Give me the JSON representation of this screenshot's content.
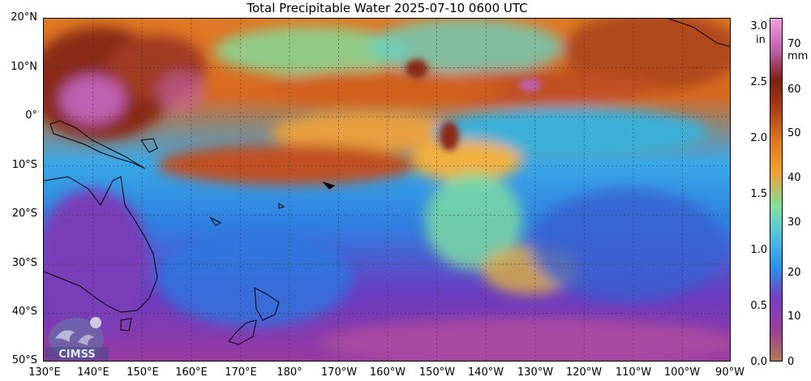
{
  "title": "Total Precipitable Water  2025-07-10 0600 UTC",
  "lat_labels": [
    "20°N",
    "10°N",
    "0°",
    "10°S",
    "20°S",
    "30°S",
    "40°S",
    "50°S"
  ],
  "lon_labels": [
    "130°E",
    "140°E",
    "150°E",
    "160°E",
    "170°E",
    "180°",
    "170°W",
    "160°W",
    "150°W",
    "140°W",
    "130°W",
    "120°W",
    "110°W",
    "100°W",
    "90°W"
  ],
  "colorbar": {
    "inch_unit": "in",
    "mm_unit": "mm",
    "inch_ticks": [
      "3.0",
      "2.5",
      "2.0",
      "1.5",
      "1.0",
      "0.5",
      "0.0"
    ],
    "mm_ticks": [
      "70",
      "60",
      "50",
      "40",
      "30",
      "20",
      "10",
      "0"
    ],
    "colors": [
      "#b07a50",
      "#9a3e9c",
      "#7a3cc0",
      "#2b8fe8",
      "#4cc0e6",
      "#7fe0a0",
      "#f0a030",
      "#e07a20",
      "#b04018",
      "#7a2010",
      "#c060b0",
      "#f0a0e0"
    ]
  },
  "logo": {
    "text": "CIMSS"
  }
}
